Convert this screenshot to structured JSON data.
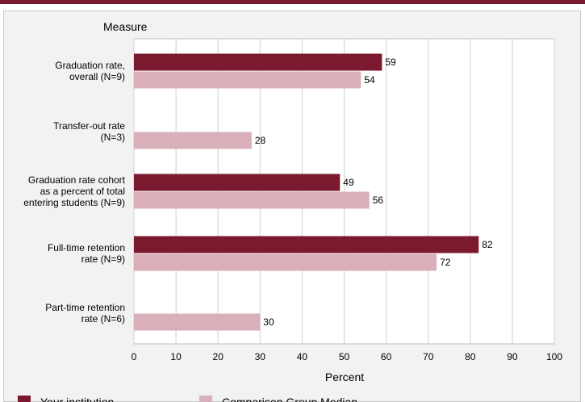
{
  "chart_data": {
    "type": "bar",
    "orientation": "horizontal",
    "category_axis_title": "Measure",
    "xlabel": "Percent",
    "xlim": [
      0,
      100
    ],
    "xticks": [
      0,
      10,
      20,
      30,
      40,
      50,
      60,
      70,
      80,
      90,
      100
    ],
    "grid": true,
    "legend_position": "bottom",
    "categories": [
      [
        "Graduation rate,",
        "overall (N=9)"
      ],
      [
        "Transfer-out rate",
        "(N=3)"
      ],
      [
        "Graduation rate cohort",
        "as a percent of total",
        "entering students (N=9)"
      ],
      [
        "Full-time retention",
        "rate (N=9)"
      ],
      [
        "Part-time retention",
        "rate (N=6)"
      ]
    ],
    "series": [
      {
        "name": "Your institution",
        "color": "#7b1a2e",
        "values": [
          59,
          null,
          49,
          82,
          null
        ]
      },
      {
        "name": "Comparison Group Median",
        "color": "#d9b0b9",
        "values": [
          54,
          28,
          56,
          72,
          30
        ]
      }
    ]
  }
}
